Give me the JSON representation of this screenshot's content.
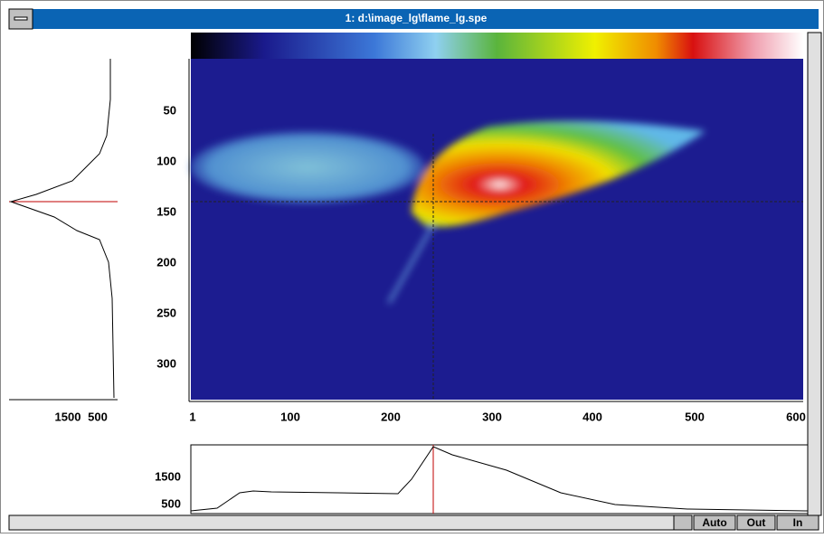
{
  "window": {
    "title": "1: d:\\image_lg\\flame_lg.spe"
  },
  "image": {
    "yticks": [
      50,
      100,
      150,
      200,
      250,
      300
    ],
    "xticks": [
      1,
      100,
      200,
      300,
      400,
      500,
      600
    ]
  },
  "left_profile": {
    "xticks": [
      1500,
      500
    ]
  },
  "bottom_profile": {
    "yticks": [
      1500,
      500
    ]
  },
  "buttons": [
    "Auto",
    "Out",
    "In"
  ]
}
